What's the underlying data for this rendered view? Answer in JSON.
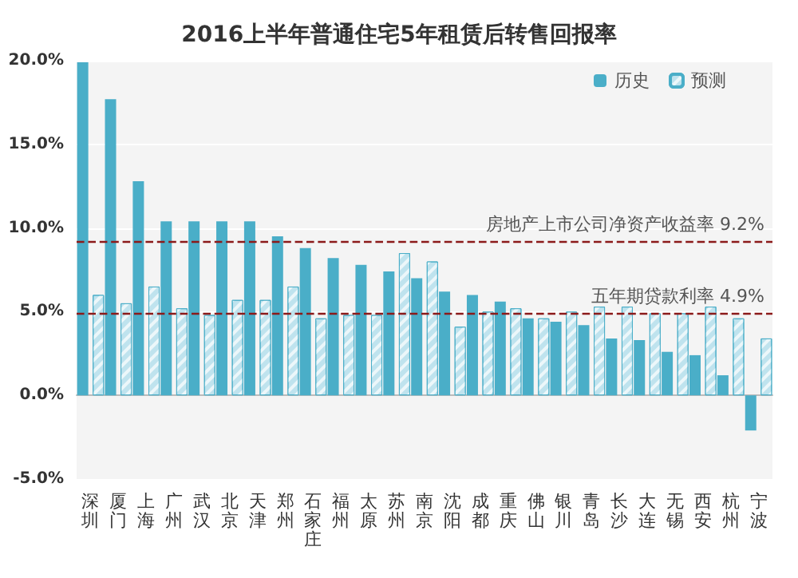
{
  "chart_data": {
    "type": "bar",
    "title": "2016上半年普通住宅5年租赁后转售回报率",
    "categories": [
      "深圳",
      "厦门",
      "上海",
      "广州",
      "武汉",
      "北京",
      "天津",
      "郑州",
      "石家庄",
      "福州",
      "太原",
      "苏州",
      "南京",
      "沈阳",
      "成都",
      "重庆",
      "佛山",
      "银川",
      "青岛",
      "长沙",
      "大连",
      "无锡",
      "西安",
      "杭州",
      "宁波"
    ],
    "series": [
      {
        "name": "历史",
        "color": "#4aaec8",
        "values": [
          19.9,
          17.7,
          12.8,
          10.4,
          10.4,
          10.4,
          10.4,
          9.5,
          8.8,
          8.2,
          7.8,
          7.4,
          7.0,
          6.2,
          6.0,
          5.6,
          4.6,
          4.4,
          4.2,
          3.4,
          3.3,
          2.6,
          2.4,
          1.2,
          -2.1
        ]
      },
      {
        "name": "预测",
        "color": "#bfe3ee",
        "values": [
          6.0,
          5.5,
          6.5,
          5.2,
          4.8,
          5.7,
          5.7,
          6.5,
          4.6,
          4.8,
          4.8,
          8.5,
          8.0,
          4.1,
          5.0,
          5.2,
          4.6,
          5.0,
          5.3,
          5.3,
          4.9,
          4.9,
          5.3,
          4.6,
          3.4
        ]
      }
    ],
    "ylim": [
      -5,
      20
    ],
    "yticks": [
      {
        "value": -5,
        "label": "-5.0%"
      },
      {
        "value": 0,
        "label": "0.0%"
      },
      {
        "value": 5,
        "label": "5.0%"
      },
      {
        "value": 10,
        "label": "10.0%"
      },
      {
        "value": 15,
        "label": "15.0%"
      },
      {
        "value": 20,
        "label": "20.0%"
      }
    ],
    "ref_lines": [
      {
        "axis": "y",
        "value": 9.2,
        "label": "房地产上市公司净资产收益率 9.2%",
        "color": "#8b1a1a",
        "line_style": "dashed"
      },
      {
        "axis": "y",
        "value": 4.9,
        "label": "五年期贷款利率 4.9%",
        "color": "#8b1a1a",
        "line_style": "dashed"
      }
    ],
    "grid": "y",
    "legend": "top right"
  }
}
